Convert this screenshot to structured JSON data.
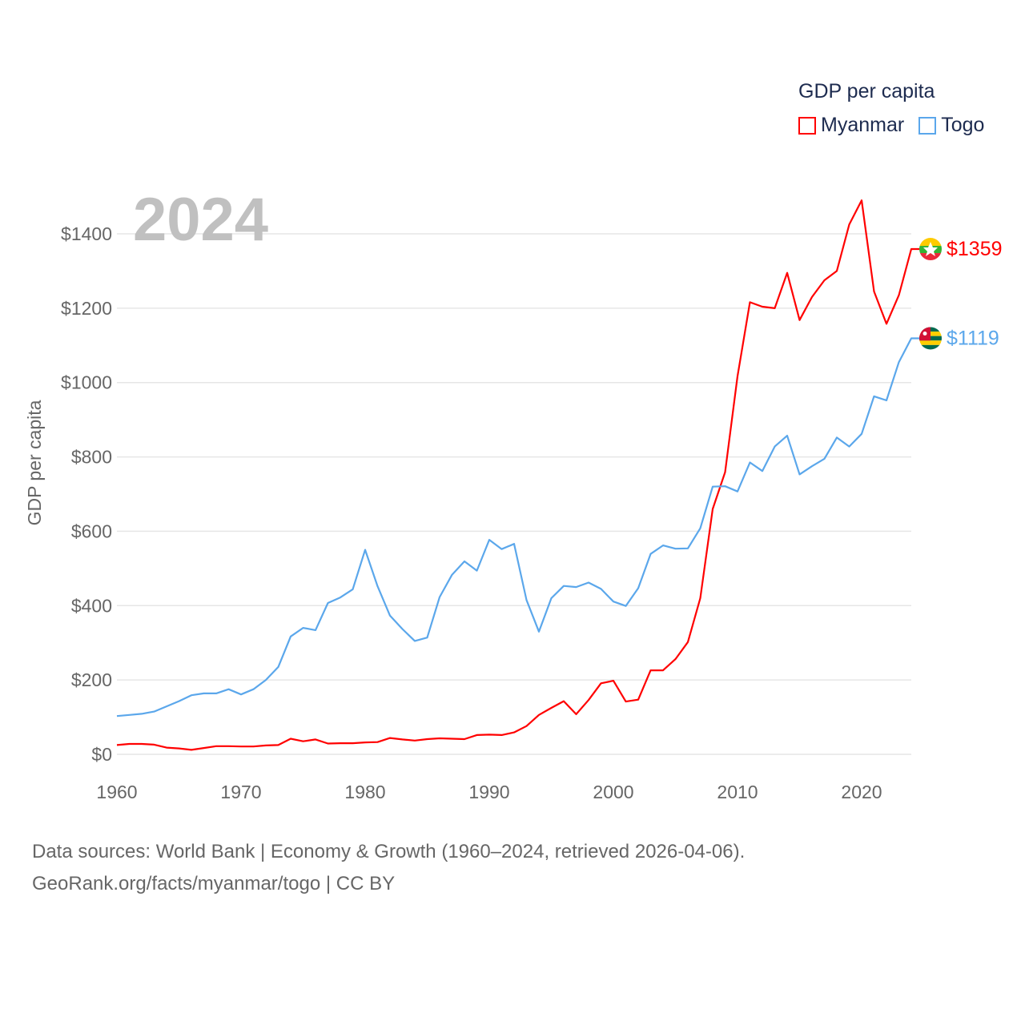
{
  "chart_data": {
    "type": "line",
    "title": "GDP per capita",
    "year_label": "2024",
    "ylabel": "GDP per capita",
    "xlabel": "",
    "xlim": [
      1960,
      2024
    ],
    "ylim": [
      0,
      1500
    ],
    "x_ticks": [
      1960,
      1970,
      1980,
      1990,
      2000,
      2010,
      2020
    ],
    "y_ticks": [
      0,
      200,
      400,
      600,
      800,
      1000,
      1200,
      1400
    ],
    "y_tick_labels": [
      "$0",
      "$200",
      "$400",
      "$600",
      "$800",
      "$1000",
      "$1200",
      "$1400"
    ],
    "grid": true,
    "legend_placement": "top-right",
    "x": [
      1960,
      1961,
      1962,
      1963,
      1964,
      1965,
      1966,
      1967,
      1968,
      1969,
      1970,
      1971,
      1972,
      1973,
      1974,
      1975,
      1976,
      1977,
      1978,
      1979,
      1980,
      1981,
      1982,
      1983,
      1984,
      1985,
      1986,
      1987,
      1988,
      1989,
      1990,
      1991,
      1992,
      1993,
      1994,
      1995,
      1996,
      1997,
      1998,
      1999,
      2000,
      2001,
      2002,
      2003,
      2004,
      2005,
      2006,
      2007,
      2008,
      2009,
      2010,
      2011,
      2012,
      2013,
      2014,
      2015,
      2016,
      2017,
      2018,
      2019,
      2020,
      2021,
      2022,
      2023,
      2024
    ],
    "series": [
      {
        "name": "Myanmar",
        "color": "#ff0000",
        "end_label": "$1359",
        "values": [
          25,
          28,
          28,
          26,
          18,
          16,
          12,
          17,
          22,
          22,
          21,
          21,
          24,
          25,
          42,
          35,
          40,
          29,
          30,
          30,
          32,
          33,
          44,
          40,
          37,
          41,
          43,
          42,
          41,
          52,
          53,
          52,
          59,
          76,
          106,
          125,
          143,
          108,
          146,
          191,
          198,
          142,
          147,
          226,
          226,
          256,
          302,
          420,
          660,
          759,
          1017,
          1216,
          1204,
          1200,
          1295,
          1168,
          1230,
          1275,
          1300,
          1425,
          1490,
          1245,
          1158,
          1235,
          1359
        ]
      },
      {
        "name": "Togo",
        "color": "#5ba7eb",
        "end_label": "$1119",
        "values": [
          103,
          106,
          109,
          115,
          129,
          143,
          159,
          164,
          164,
          175,
          161,
          175,
          200,
          235,
          317,
          340,
          334,
          407,
          422,
          444,
          550,
          452,
          373,
          337,
          305,
          314,
          423,
          483,
          519,
          494,
          577,
          552,
          566,
          415,
          330,
          420,
          453,
          450,
          462,
          445,
          411,
          399,
          447,
          539,
          562,
          553,
          554,
          608,
          720,
          721,
          707,
          785,
          762,
          828,
          857,
          753,
          775,
          795,
          852,
          828,
          862,
          963,
          952,
          1055,
          1119
        ]
      }
    ]
  },
  "footer": {
    "line1": "Data sources: World Bank | Economy & Growth (1960–2024, retrieved 2026-04-06).",
    "line2": "GeoRank.org/facts/myanmar/togo | CC BY"
  }
}
